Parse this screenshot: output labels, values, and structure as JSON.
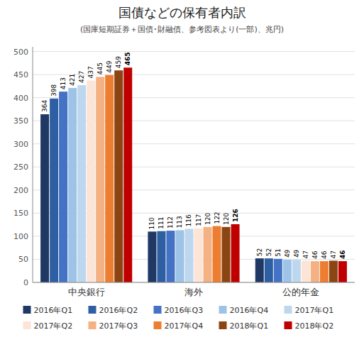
{
  "chart_data": {
    "type": "bar",
    "title": "国債などの保有者内訳",
    "subtitle": "(国庫短期証券＋国債･財融債、参考図表より(一部)、兆円)",
    "categories": [
      "中央銀行",
      "海外",
      "公的年金"
    ],
    "series": [
      {
        "name": "2016年Q1",
        "color": "#1f3864",
        "values": [
          364,
          110,
          52
        ]
      },
      {
        "name": "2016年Q2",
        "color": "#2e5fa3",
        "values": [
          398,
          111,
          52
        ]
      },
      {
        "name": "2016年Q3",
        "color": "#4472c4",
        "values": [
          413,
          112,
          51
        ]
      },
      {
        "name": "2016年Q4",
        "color": "#9dc3e6",
        "values": [
          421,
          113,
          49
        ]
      },
      {
        "name": "2017年Q1",
        "color": "#bdd7ee",
        "values": [
          427,
          116,
          49
        ]
      },
      {
        "name": "2017年Q2",
        "color": "#fce4d6",
        "values": [
          437,
          117,
          47
        ]
      },
      {
        "name": "2017年Q3",
        "color": "#f4b183",
        "values": [
          445,
          120,
          46
        ]
      },
      {
        "name": "2017年Q4",
        "color": "#ed7d31",
        "values": [
          449,
          122,
          46
        ]
      },
      {
        "name": "2018年Q1",
        "color": "#8b4513",
        "values": [
          459,
          120,
          47
        ]
      },
      {
        "name": "2018年Q2",
        "color": "#c00000",
        "values": [
          465,
          126,
          46
        ]
      }
    ],
    "ylim": [
      0,
      510
    ],
    "yticks": [
      0,
      50,
      100,
      150,
      200,
      250,
      300,
      350,
      400,
      450,
      500
    ],
    "grid": true,
    "data_labels": true,
    "legend": "bottom"
  }
}
